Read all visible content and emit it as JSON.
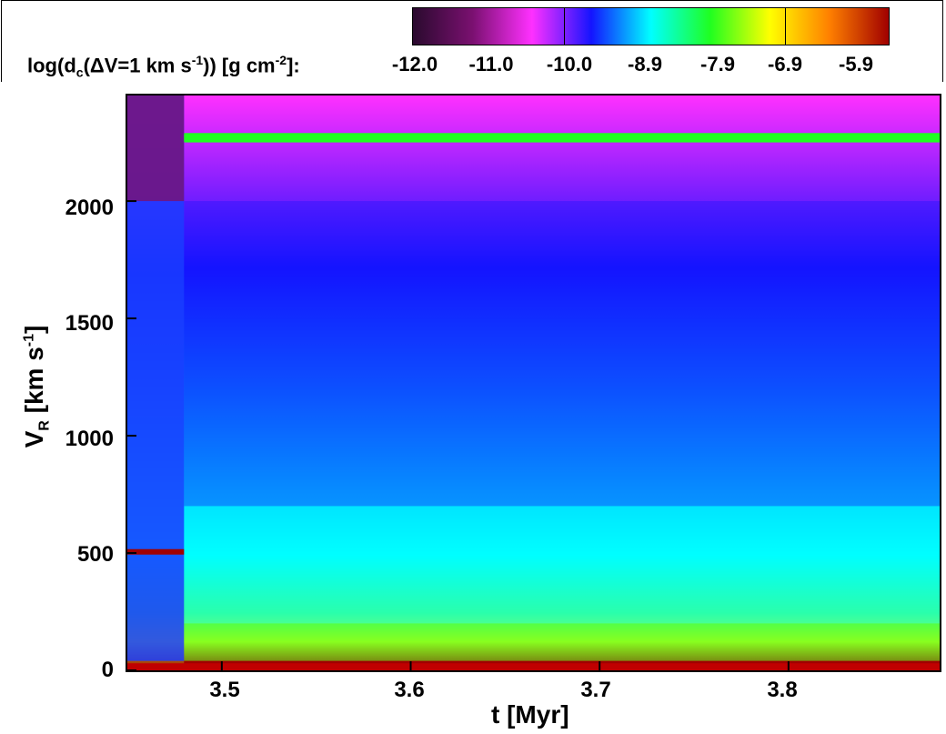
{
  "colorbar": {
    "label_prefix": "log(d",
    "label_sub": "c",
    "label_mid": "(ΔV=1 km s",
    "label_sup": "-1",
    "label_suffix": ")) [g cm",
    "label_sup2": "-2",
    "label_end": "]:",
    "values": [
      "-12.0",
      "-11.0",
      "-10.0",
      "-8.9",
      "-7.9",
      "-6.9",
      "-5.9"
    ],
    "colors": [
      "#2a0a2e",
      "#7a1070",
      "#ff30ff",
      "#1414ff",
      "#00ffff",
      "#20ff20",
      "#ffff00",
      "#ff8000",
      "#a00000"
    ]
  },
  "chart_data": {
    "type": "heatmap",
    "xlabel": "t [Myr]",
    "ylabel_main": "V",
    "ylabel_sub": "R",
    "ylabel_unit_pre": " [km s",
    "ylabel_unit_sup": "-1",
    "ylabel_unit_post": "]",
    "xlim": [
      3.45,
      3.88
    ],
    "ylim": [
      0,
      2450
    ],
    "xticks": [
      3.5,
      3.6,
      3.7,
      3.8
    ],
    "xtick_labels": [
      "3.5",
      "3.6",
      "3.7",
      "3.8"
    ],
    "yticks": [
      0,
      500,
      1000,
      1500,
      2000
    ],
    "ytick_labels": [
      "0",
      "500",
      "1000",
      "1500",
      "2000"
    ],
    "bands": [
      {
        "v_low": 2000,
        "v_high": 2450,
        "log_dc": -11.0
      },
      {
        "v_low": 2250,
        "v_high": 2290,
        "log_dc": -7.9
      },
      {
        "v_low": 1500,
        "v_high": 2000,
        "log_dc": -10.0
      },
      {
        "v_low": 700,
        "v_high": 1500,
        "log_dc": -9.5
      },
      {
        "v_low": 200,
        "v_high": 700,
        "log_dc": -8.9
      },
      {
        "v_low": 40,
        "v_high": 200,
        "log_dc": -8.4
      },
      {
        "v_low": 0,
        "v_high": 40,
        "log_dc": -5.9
      }
    ],
    "features": [
      {
        "t": 3.465,
        "v": 505,
        "log_dc": -5.9
      },
      {
        "t": 3.48,
        "v": 2270,
        "log_dc": -7.9
      }
    ]
  }
}
